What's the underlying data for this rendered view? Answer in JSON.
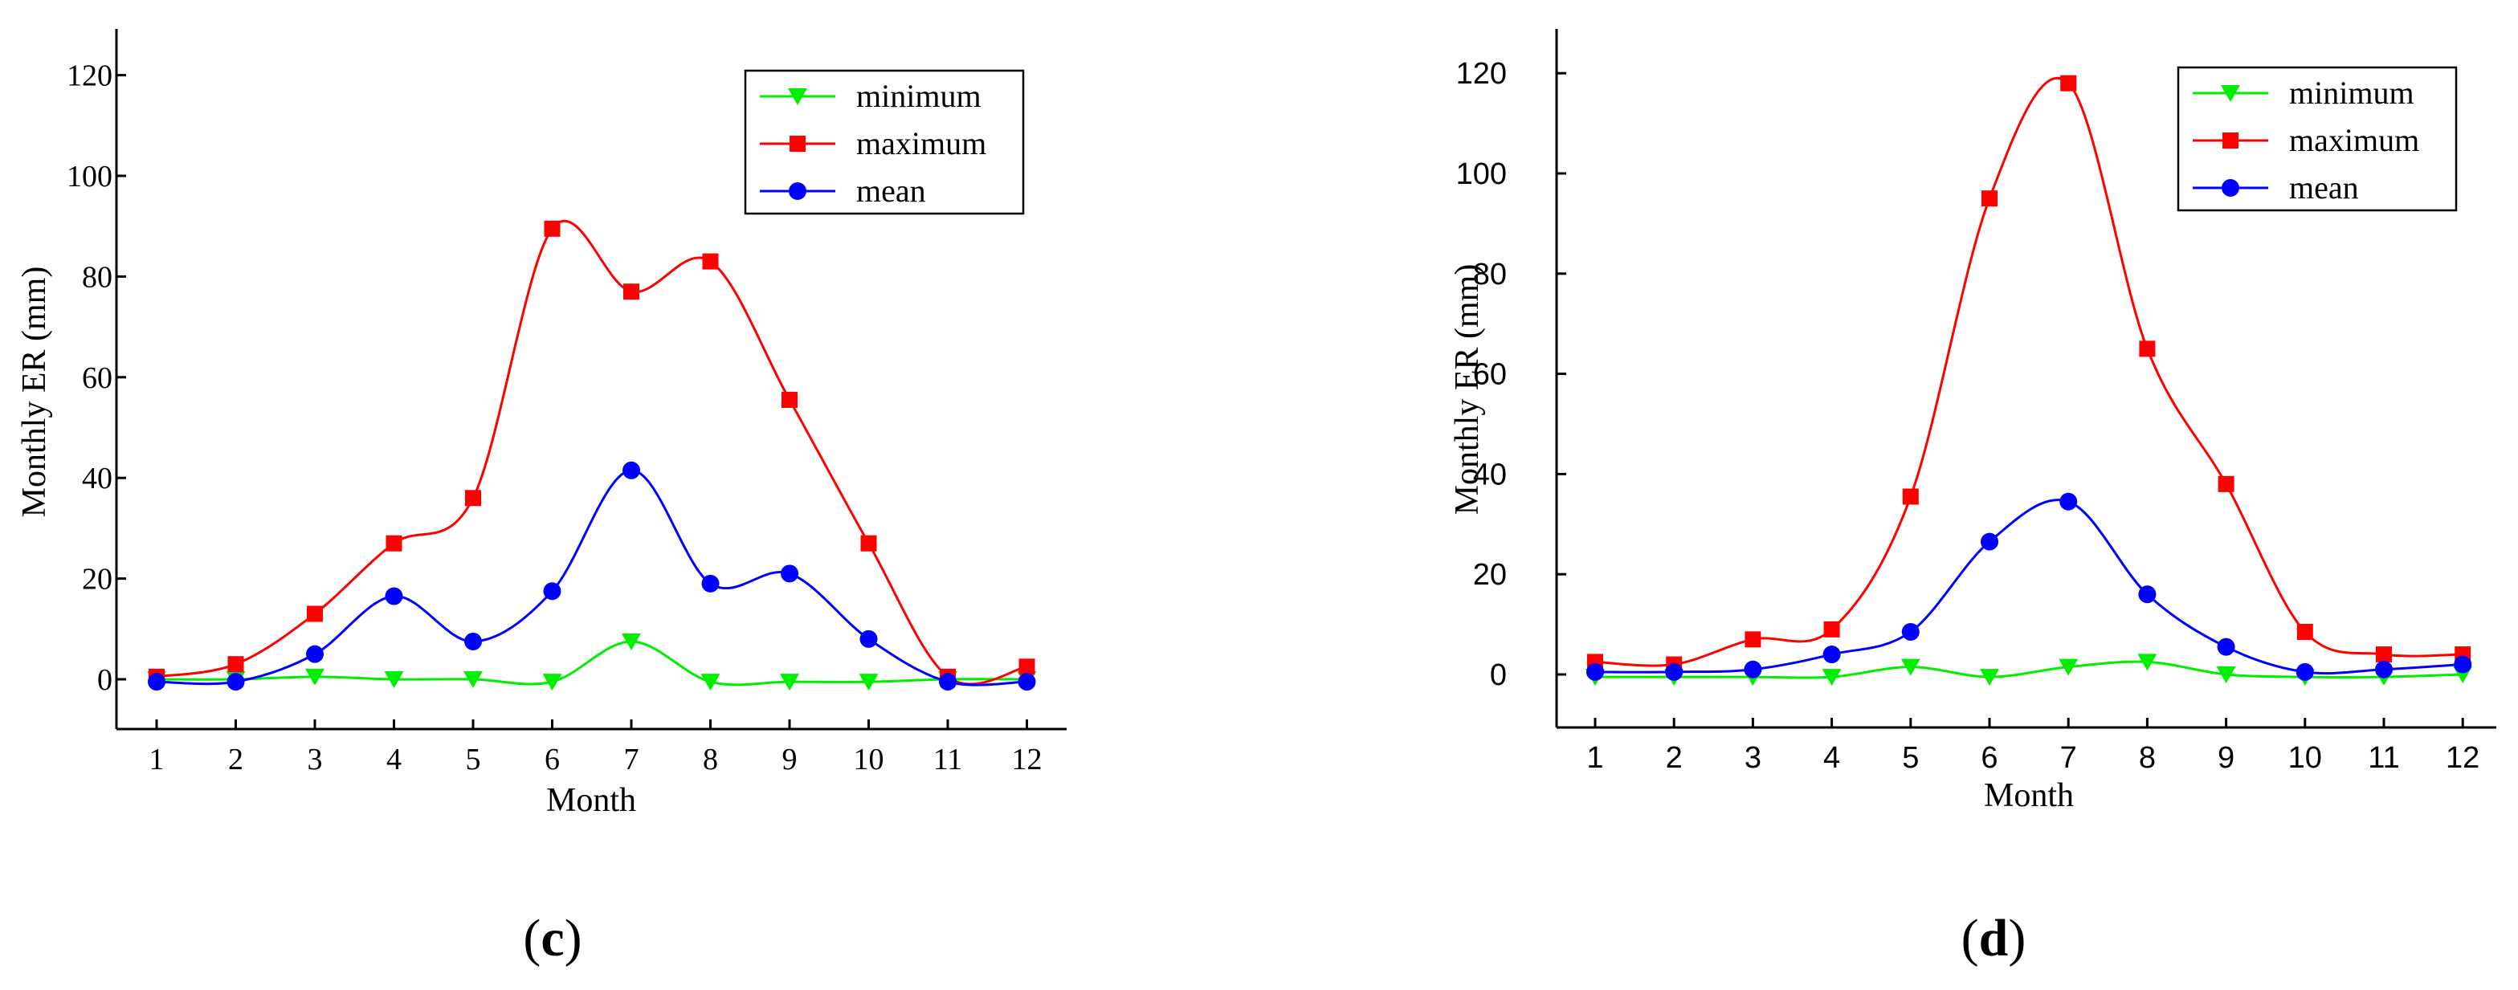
{
  "colors": {
    "minimum": "#00ee00",
    "maximum": "#ff0000",
    "mean": "#0000ff",
    "axis": "#000000"
  },
  "panels": [
    {
      "panel_label": "c",
      "panel_label_open": "(",
      "panel_label_close": ")",
      "chart_data": {
        "type": "line",
        "title": "",
        "xlabel": "Month",
        "ylabel": "Monthly ER (mm)",
        "categories": [
          "1",
          "2",
          "3",
          "4",
          "5",
          "6",
          "7",
          "8",
          "9",
          "10",
          "11",
          "12"
        ],
        "yticks": [
          "0",
          "20",
          "40",
          "60",
          "80",
          "100",
          "120"
        ],
        "ylim": [
          -10,
          130
        ],
        "legend_position": "top-right",
        "series": [
          {
            "name": "minimum",
            "marker": "triangle-down",
            "values": [
              0,
              0,
              0.5,
              0,
              0,
              -0.5,
              7.5,
              -0.5,
              -0.5,
              -0.5,
              0,
              0
            ]
          },
          {
            "name": "maximum",
            "marker": "square",
            "values": [
              0.5,
              3,
              13,
              27,
              36,
              89.5,
              77,
              83,
              55.5,
              27,
              0.5,
              2.5
            ]
          },
          {
            "name": "mean",
            "marker": "circle",
            "values": [
              -0.5,
              -0.5,
              5,
              16.5,
              7.5,
              17.5,
              41.5,
              19,
              21,
              8,
              -0.5,
              -0.5
            ]
          }
        ]
      }
    },
    {
      "panel_label": "d",
      "panel_label_open": "(",
      "panel_label_close": ")",
      "chart_data": {
        "type": "line",
        "title": "",
        "xlabel": "Month",
        "ylabel": "Monthly ER (mm)",
        "categories": [
          "1",
          "2",
          "3",
          "4",
          "5",
          "6",
          "7",
          "8",
          "9",
          "10",
          "11",
          "12"
        ],
        "yticks": [
          "0",
          "20",
          "40",
          "60",
          "80",
          "100",
          "120"
        ],
        "ylim": [
          -11,
          130
        ],
        "legend_position": "top-right",
        "series": [
          {
            "name": "minimum",
            "marker": "triangle-down",
            "values": [
              -0.5,
              -0.5,
              -0.5,
              -0.5,
              1.5,
              -0.5,
              1.5,
              2.5,
              0,
              -0.5,
              -0.5,
              0
            ]
          },
          {
            "name": "maximum",
            "marker": "square",
            "values": [
              2.5,
              2,
              7,
              9,
              35.5,
              95,
              118,
              65,
              38,
              8.5,
              4,
              4
            ]
          },
          {
            "name": "mean",
            "marker": "circle",
            "values": [
              0.5,
              0.5,
              1,
              4,
              8.5,
              26.5,
              34.5,
              16,
              5.5,
              0.5,
              1,
              2
            ]
          }
        ]
      }
    }
  ]
}
